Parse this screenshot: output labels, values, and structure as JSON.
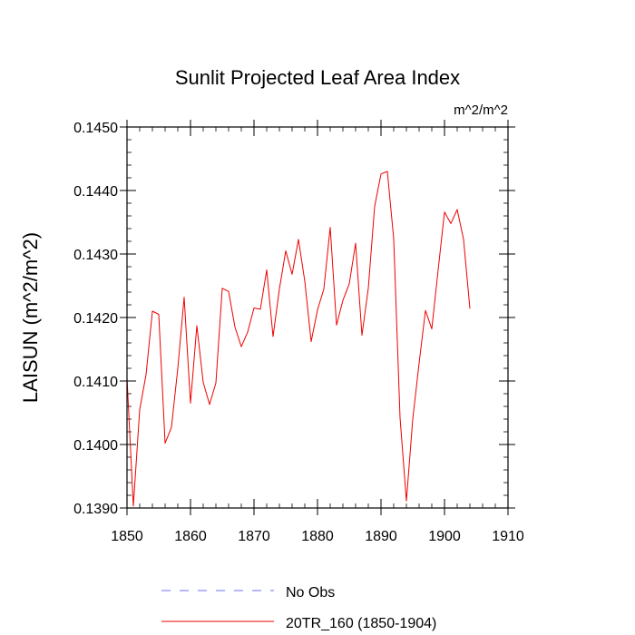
{
  "chart_data": {
    "type": "line",
    "title": "Sunlit Projected Leaf Area Index",
    "units_label": "m^2/m^2",
    "xlabel": "",
    "ylabel": "LAISUN  (m^2/m^2)",
    "xlim": [
      1850,
      1910
    ],
    "ylim": [
      0.139,
      0.145
    ],
    "x_ticks": [
      1850,
      1860,
      1870,
      1880,
      1890,
      1900,
      1910
    ],
    "x_tick_labels": [
      "1850",
      "1860",
      "1870",
      "1880",
      "1890",
      "1900",
      "1910"
    ],
    "y_ticks": [
      0.139,
      0.14,
      0.141,
      0.142,
      0.143,
      0.144,
      0.145
    ],
    "y_tick_labels": [
      "0.1390",
      "0.1400",
      "0.1410",
      "0.1420",
      "0.1430",
      "0.1440",
      "0.1450"
    ],
    "legend": {
      "placement": "bottom",
      "entries": [
        {
          "label": "No Obs",
          "color": "#6f6fff",
          "style": "dashed"
        },
        {
          "label": "20TR_160 (1850-1904)",
          "color": "#ee0000",
          "style": "solid"
        }
      ]
    },
    "series": [
      {
        "name": "20TR_160 (1850-1904)",
        "color": "#ee0000",
        "x": [
          1850,
          1851,
          1852,
          1853,
          1854,
          1855,
          1856,
          1857,
          1858,
          1859,
          1860,
          1861,
          1862,
          1863,
          1864,
          1865,
          1866,
          1867,
          1868,
          1869,
          1870,
          1871,
          1872,
          1873,
          1874,
          1875,
          1876,
          1877,
          1878,
          1879,
          1880,
          1881,
          1882,
          1883,
          1884,
          1885,
          1886,
          1887,
          1888,
          1889,
          1890,
          1891,
          1892,
          1893,
          1894,
          1895,
          1896,
          1897,
          1898,
          1899,
          1900,
          1901,
          1902,
          1903,
          1904
        ],
        "values": [
          0.14105,
          0.13903,
          0.14055,
          0.1411,
          0.1421,
          0.14205,
          0.14002,
          0.14027,
          0.1412,
          0.14232,
          0.14065,
          0.14187,
          0.14098,
          0.14063,
          0.14097,
          0.14246,
          0.14241,
          0.14185,
          0.14154,
          0.14177,
          0.14215,
          0.14213,
          0.14275,
          0.1417,
          0.14245,
          0.14305,
          0.14268,
          0.14323,
          0.14257,
          0.14162,
          0.14212,
          0.14245,
          0.14342,
          0.14188,
          0.14227,
          0.14253,
          0.14317,
          0.14172,
          0.14246,
          0.14375,
          0.14426,
          0.1443,
          0.14324,
          0.14042,
          0.13911,
          0.1404,
          0.14128,
          0.14211,
          0.14182,
          0.14275,
          0.14366,
          0.14348,
          0.1437,
          0.14323,
          0.14214
        ]
      }
    ]
  }
}
